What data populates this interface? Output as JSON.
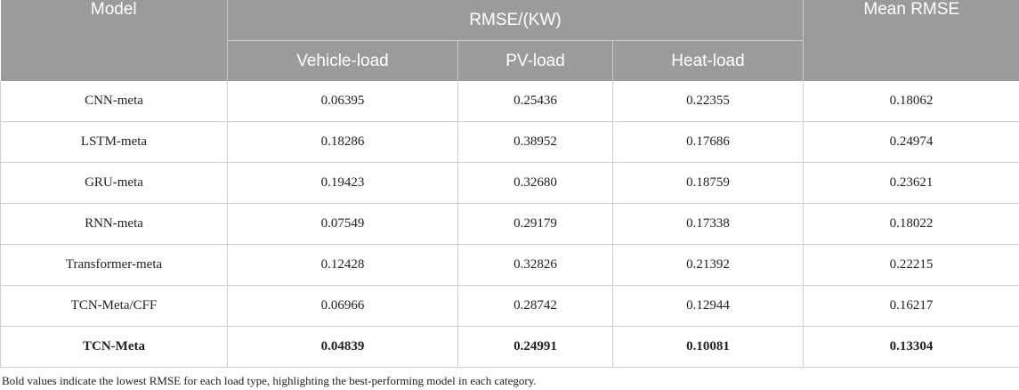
{
  "table": {
    "headers": {
      "model": "Model",
      "rmse_group": "RMSE/(KW)",
      "mean_rmse": "Mean RMSE",
      "vehicle_load": "Vehicle-load",
      "pv_load": "PV-load",
      "heat_load": "Heat-load"
    },
    "rows": [
      {
        "model": "CNN-meta",
        "vehicle": "0.06395",
        "pv": "0.25436",
        "heat": "0.22355",
        "mean": "0.18062"
      },
      {
        "model": "LSTM-meta",
        "vehicle": "0.18286",
        "pv": "0.38952",
        "heat": "0.17686",
        "mean": "0.24974"
      },
      {
        "model": "GRU-meta",
        "vehicle": "0.19423",
        "pv": "0.32680",
        "heat": "0.18759",
        "mean": "0.23621"
      },
      {
        "model": "RNN-meta",
        "vehicle": "0.07549",
        "pv": "0.29179",
        "heat": "0.17338",
        "mean": "0.18022"
      },
      {
        "model": "Transformer-meta",
        "vehicle": "0.12428",
        "pv": "0.32826",
        "heat": "0.21392",
        "mean": "0.22215"
      },
      {
        "model": "TCN-Meta/CFF",
        "vehicle": "0.06966",
        "pv": "0.28742",
        "heat": "0.12944",
        "mean": "0.16217"
      },
      {
        "model": "TCN-Meta",
        "vehicle": "0.04839",
        "pv": "0.24991",
        "heat": "0.10081",
        "mean": "0.13304"
      }
    ]
  },
  "footnote": "Bold values indicate the lowest RMSE for each load type, highlighting the best-performing model in each category."
}
